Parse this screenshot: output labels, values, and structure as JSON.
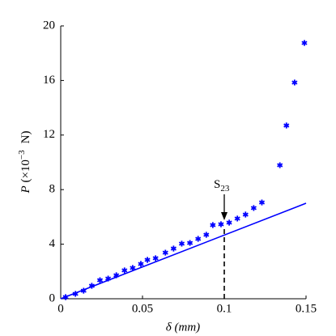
{
  "chart_data": {
    "type": "scatter",
    "xlabel": "δ (mm)",
    "ylabel": {
      "symbol": "P",
      "prefix": "(×10",
      "exponent": "−3",
      "unit": "N)"
    },
    "x": [
      0.003,
      0.009,
      0.014,
      0.019,
      0.024,
      0.029,
      0.034,
      0.039,
      0.044,
      0.049,
      0.053,
      0.058,
      0.064,
      0.069,
      0.074,
      0.079,
      0.084,
      0.089,
      0.093,
      0.098,
      0.103,
      0.108,
      0.113,
      0.118,
      0.123,
      0.134,
      0.138,
      0.143,
      0.149
    ],
    "series": [
      {
        "color": "#0000ff",
        "values": [
          0.12,
          0.36,
          0.59,
          0.95,
          1.36,
          1.48,
          1.72,
          2.08,
          2.26,
          2.55,
          2.85,
          2.97,
          3.38,
          3.68,
          4.04,
          4.09,
          4.39,
          4.69,
          5.4,
          5.46,
          5.58,
          5.88,
          6.17,
          6.65,
          7.06,
          9.79,
          12.7,
          15.85,
          18.75
        ]
      }
    ],
    "fit_line": {
      "color": "#0000ff",
      "x": [
        0,
        0.15
      ],
      "values": [
        0,
        7
      ]
    },
    "annotation": {
      "text": "S",
      "subscript": "23",
      "x": 0.1
    },
    "xlim": [
      0,
      0.15
    ],
    "xticks": [
      0,
      0.05,
      0.1,
      0.15
    ],
    "ylim": [
      0,
      20
    ],
    "yticks": [
      0,
      4,
      8,
      12,
      16,
      20
    ]
  }
}
